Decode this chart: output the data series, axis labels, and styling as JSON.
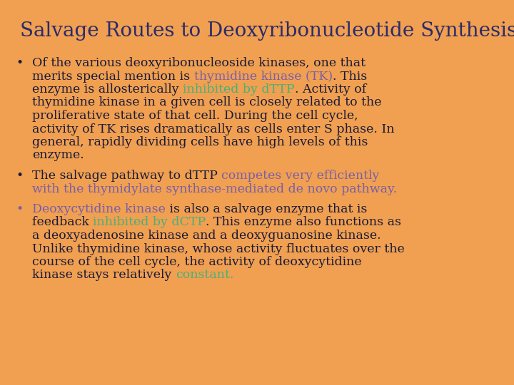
{
  "title": "Salvage Routes to Deoxyribonucleotide Synthesis",
  "background_color": "#F0A050",
  "title_color": "#2B2B6B",
  "body_color": "#1A1A3A",
  "green_color": "#4CAF7A",
  "purple_color": "#7B5EA7",
  "title_fontsize": 20,
  "body_fontsize": 12.5,
  "font_family": "DejaVu Serif",
  "lines": [
    [
      {
        "text": "Of the various deoxyribonucleoside kinases, one that",
        "color": "#1A1A3A"
      }
    ],
    [
      {
        "text": "merits special mention is ",
        "color": "#1A1A3A"
      },
      {
        "text": "thymidine kinase (TK)",
        "color": "#7B5EA7"
      },
      {
        "text": ". This",
        "color": "#1A1A3A"
      }
    ],
    [
      {
        "text": "enzyme is allosterically ",
        "color": "#1A1A3A"
      },
      {
        "text": "inhibited by dTTP",
        "color": "#4CAF7A"
      },
      {
        "text": ". Activity of",
        "color": "#1A1A3A"
      }
    ],
    [
      {
        "text": "thymidine kinase in a given cell is closely related to the",
        "color": "#1A1A3A"
      }
    ],
    [
      {
        "text": "proliferative state of that cell. During the cell cycle,",
        "color": "#1A1A3A"
      }
    ],
    [
      {
        "text": "activity of TK rises dramatically as cells enter S phase. In",
        "color": "#1A1A3A"
      }
    ],
    [
      {
        "text": "general, rapidly dividing cells have high levels of this",
        "color": "#1A1A3A"
      }
    ],
    [
      {
        "text": "enzyme.",
        "color": "#1A1A3A"
      }
    ],
    null,
    [
      {
        "text": "The salvage pathway to dTTP ",
        "color": "#1A1A3A"
      },
      {
        "text": "competes very efficiently",
        "color": "#7B5EA7"
      }
    ],
    [
      {
        "text": "with the thymidylate synthase-mediated de novo pathway.",
        "color": "#7B5EA7"
      }
    ],
    null,
    [
      {
        "text": "Deoxycytidine kinase",
        "color": "#7B5EA7"
      },
      {
        "text": " is also a salvage enzyme that is",
        "color": "#1A1A3A"
      }
    ],
    [
      {
        "text": "feedback ",
        "color": "#1A1A3A"
      },
      {
        "text": "inhibited by dCTP",
        "color": "#4CAF7A"
      },
      {
        "text": ". This enzyme also functions as",
        "color": "#1A1A3A"
      }
    ],
    [
      {
        "text": "a deoxyadenosine kinase and a deoxyguanosine kinase.",
        "color": "#1A1A3A"
      }
    ],
    [
      {
        "text": "Unlike thymidine kinase, whose activity fluctuates over the",
        "color": "#1A1A3A"
      }
    ],
    [
      {
        "text": "course of the cell cycle, the activity of deoxycytidine",
        "color": "#1A1A3A"
      }
    ],
    [
      {
        "text": "kinase stays relatively ",
        "color": "#1A1A3A"
      },
      {
        "text": "constant.",
        "color": "#4CAF7A"
      }
    ]
  ],
  "bullet_lines": [
    0,
    9,
    12
  ],
  "bullet3_color": "#7B5EA7"
}
